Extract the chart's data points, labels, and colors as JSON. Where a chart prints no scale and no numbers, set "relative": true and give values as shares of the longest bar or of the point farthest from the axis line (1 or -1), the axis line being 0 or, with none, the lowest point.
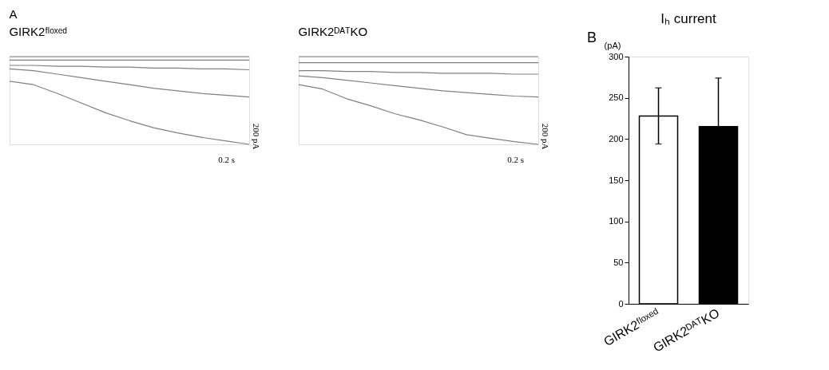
{
  "chart_data": [
    {
      "type": "line",
      "title": "GIRK2ᶠˡᵒˣᵉᵈ",
      "relative": true,
      "line_style": "solid",
      "annotations": [
        "A",
        "0.2 s",
        "200 pA"
      ],
      "categories": [
        null,
        null,
        null,
        null,
        null,
        null,
        null,
        null,
        null,
        null,
        null
      ],
      "series": [
        {
          "color": "#808080",
          "values": [
            1.0,
            1.0,
            1.0,
            1.0,
            1.0,
            1.0,
            1.0,
            1.0,
            1.0,
            1.0,
            1.0
          ]
        },
        {
          "color": "#808080",
          "values": [
            0.96,
            0.96,
            0.96,
            0.96,
            0.96,
            0.96,
            0.96,
            0.96,
            0.96,
            0.96,
            0.96
          ]
        },
        {
          "color": "#808080",
          "values": [
            0.9,
            0.9,
            0.89,
            0.89,
            0.88,
            0.88,
            0.87,
            0.87,
            0.86,
            0.86,
            0.85
          ]
        },
        {
          "color": "#808080",
          "values": [
            0.86,
            0.84,
            0.8,
            0.76,
            0.72,
            0.68,
            0.64,
            0.61,
            0.58,
            0.56,
            0.54
          ]
        },
        {
          "color": "#808080",
          "values": [
            0.72,
            0.68,
            0.58,
            0.47,
            0.36,
            0.27,
            0.19,
            0.13,
            0.08,
            0.04,
            0.0
          ]
        }
      ]
    },
    {
      "type": "line",
      "title": "GIRK2ᴰᴬᵀKO",
      "relative": true,
      "line_style": "solid",
      "annotations": [
        "0.2 s",
        "200 pA"
      ],
      "categories": [
        null,
        null,
        null,
        null,
        null,
        null,
        null,
        null,
        null,
        null,
        null
      ],
      "series": [
        {
          "color": "#808080",
          "values": [
            1.0,
            1.0,
            1.0,
            1.0,
            1.0,
            1.0,
            1.0,
            1.0,
            1.0,
            1.0,
            1.0
          ]
        },
        {
          "color": "#808080",
          "values": [
            0.93,
            0.93,
            0.93,
            0.93,
            0.93,
            0.93,
            0.93,
            0.93,
            0.93,
            0.93,
            0.93
          ]
        },
        {
          "color": "#808080",
          "values": [
            0.84,
            0.84,
            0.83,
            0.83,
            0.82,
            0.82,
            0.81,
            0.81,
            0.81,
            0.8,
            0.8
          ]
        },
        {
          "color": "#808080",
          "values": [
            0.78,
            0.76,
            0.73,
            0.7,
            0.67,
            0.64,
            0.61,
            0.59,
            0.57,
            0.55,
            0.54
          ]
        },
        {
          "color": "#808080",
          "values": [
            0.68,
            0.63,
            0.52,
            0.44,
            0.35,
            0.28,
            0.2,
            0.11,
            0.07,
            0.03,
            0.0
          ]
        }
      ]
    },
    {
      "type": "bar",
      "title": "Iₕ current",
      "ylabel": "(pA)",
      "annotations": [
        "B"
      ],
      "categories": [
        "GIRK2ᶠˡᵒˣᵉᵈ",
        "GIRK2ᴰᴬᵀKO"
      ],
      "values": [
        228,
        215
      ],
      "colors": [
        "#ffffff",
        "#000000"
      ],
      "errors": [
        [
          194,
          262
        ],
        [
          215,
          274
        ]
      ],
      "ylim": [
        0,
        300
      ],
      "yticks": [
        0,
        50,
        100,
        150,
        200,
        250,
        300
      ]
    }
  ]
}
